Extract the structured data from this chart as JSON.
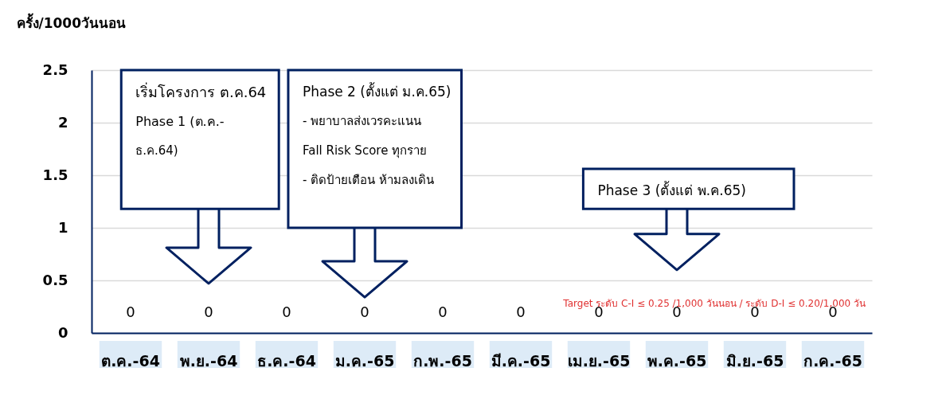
{
  "chart_data": {
    "type": "bar",
    "ylabel": "ครั้ง/1000วันนอน",
    "categories": [
      "ต.ค.-64",
      "พ.ย.-64",
      "ธ.ค.-64",
      "ม.ค.-65",
      "ก.พ.-65",
      "มี.ค.-65",
      "เม.ย.-65",
      "พ.ค.-65",
      "มิ.ย.-65",
      "ก.ค.-65"
    ],
    "values": [
      0,
      0,
      0,
      0,
      0,
      0,
      0,
      0,
      0,
      0
    ],
    "ylim": [
      0,
      2.5
    ],
    "yticks": [
      0,
      0.5,
      1,
      1.5,
      2,
      2.5
    ],
    "grid": "y",
    "data_labels": true,
    "annotations": [
      "เริ่มโครงการ ต.ค.64\nPhase 1 (ต.ค.-\nธ.ค.64)",
      "Phase 2 (ตั้งแต่ ม.ค.65)\n- พยาบาลส่งเวรคะแนน\nFall Risk Score ทุกราย\n- ติดป้ายเตือน ห้ามลงเดิน",
      "Phase 3 (ตั้งแต่ พ.ค.65)",
      "Target ระดับ C-I ≤ 0.25 /1,000 วันนอน  / ระดับ D-I ≤ 0.20/1,000  วัน"
    ]
  }
}
